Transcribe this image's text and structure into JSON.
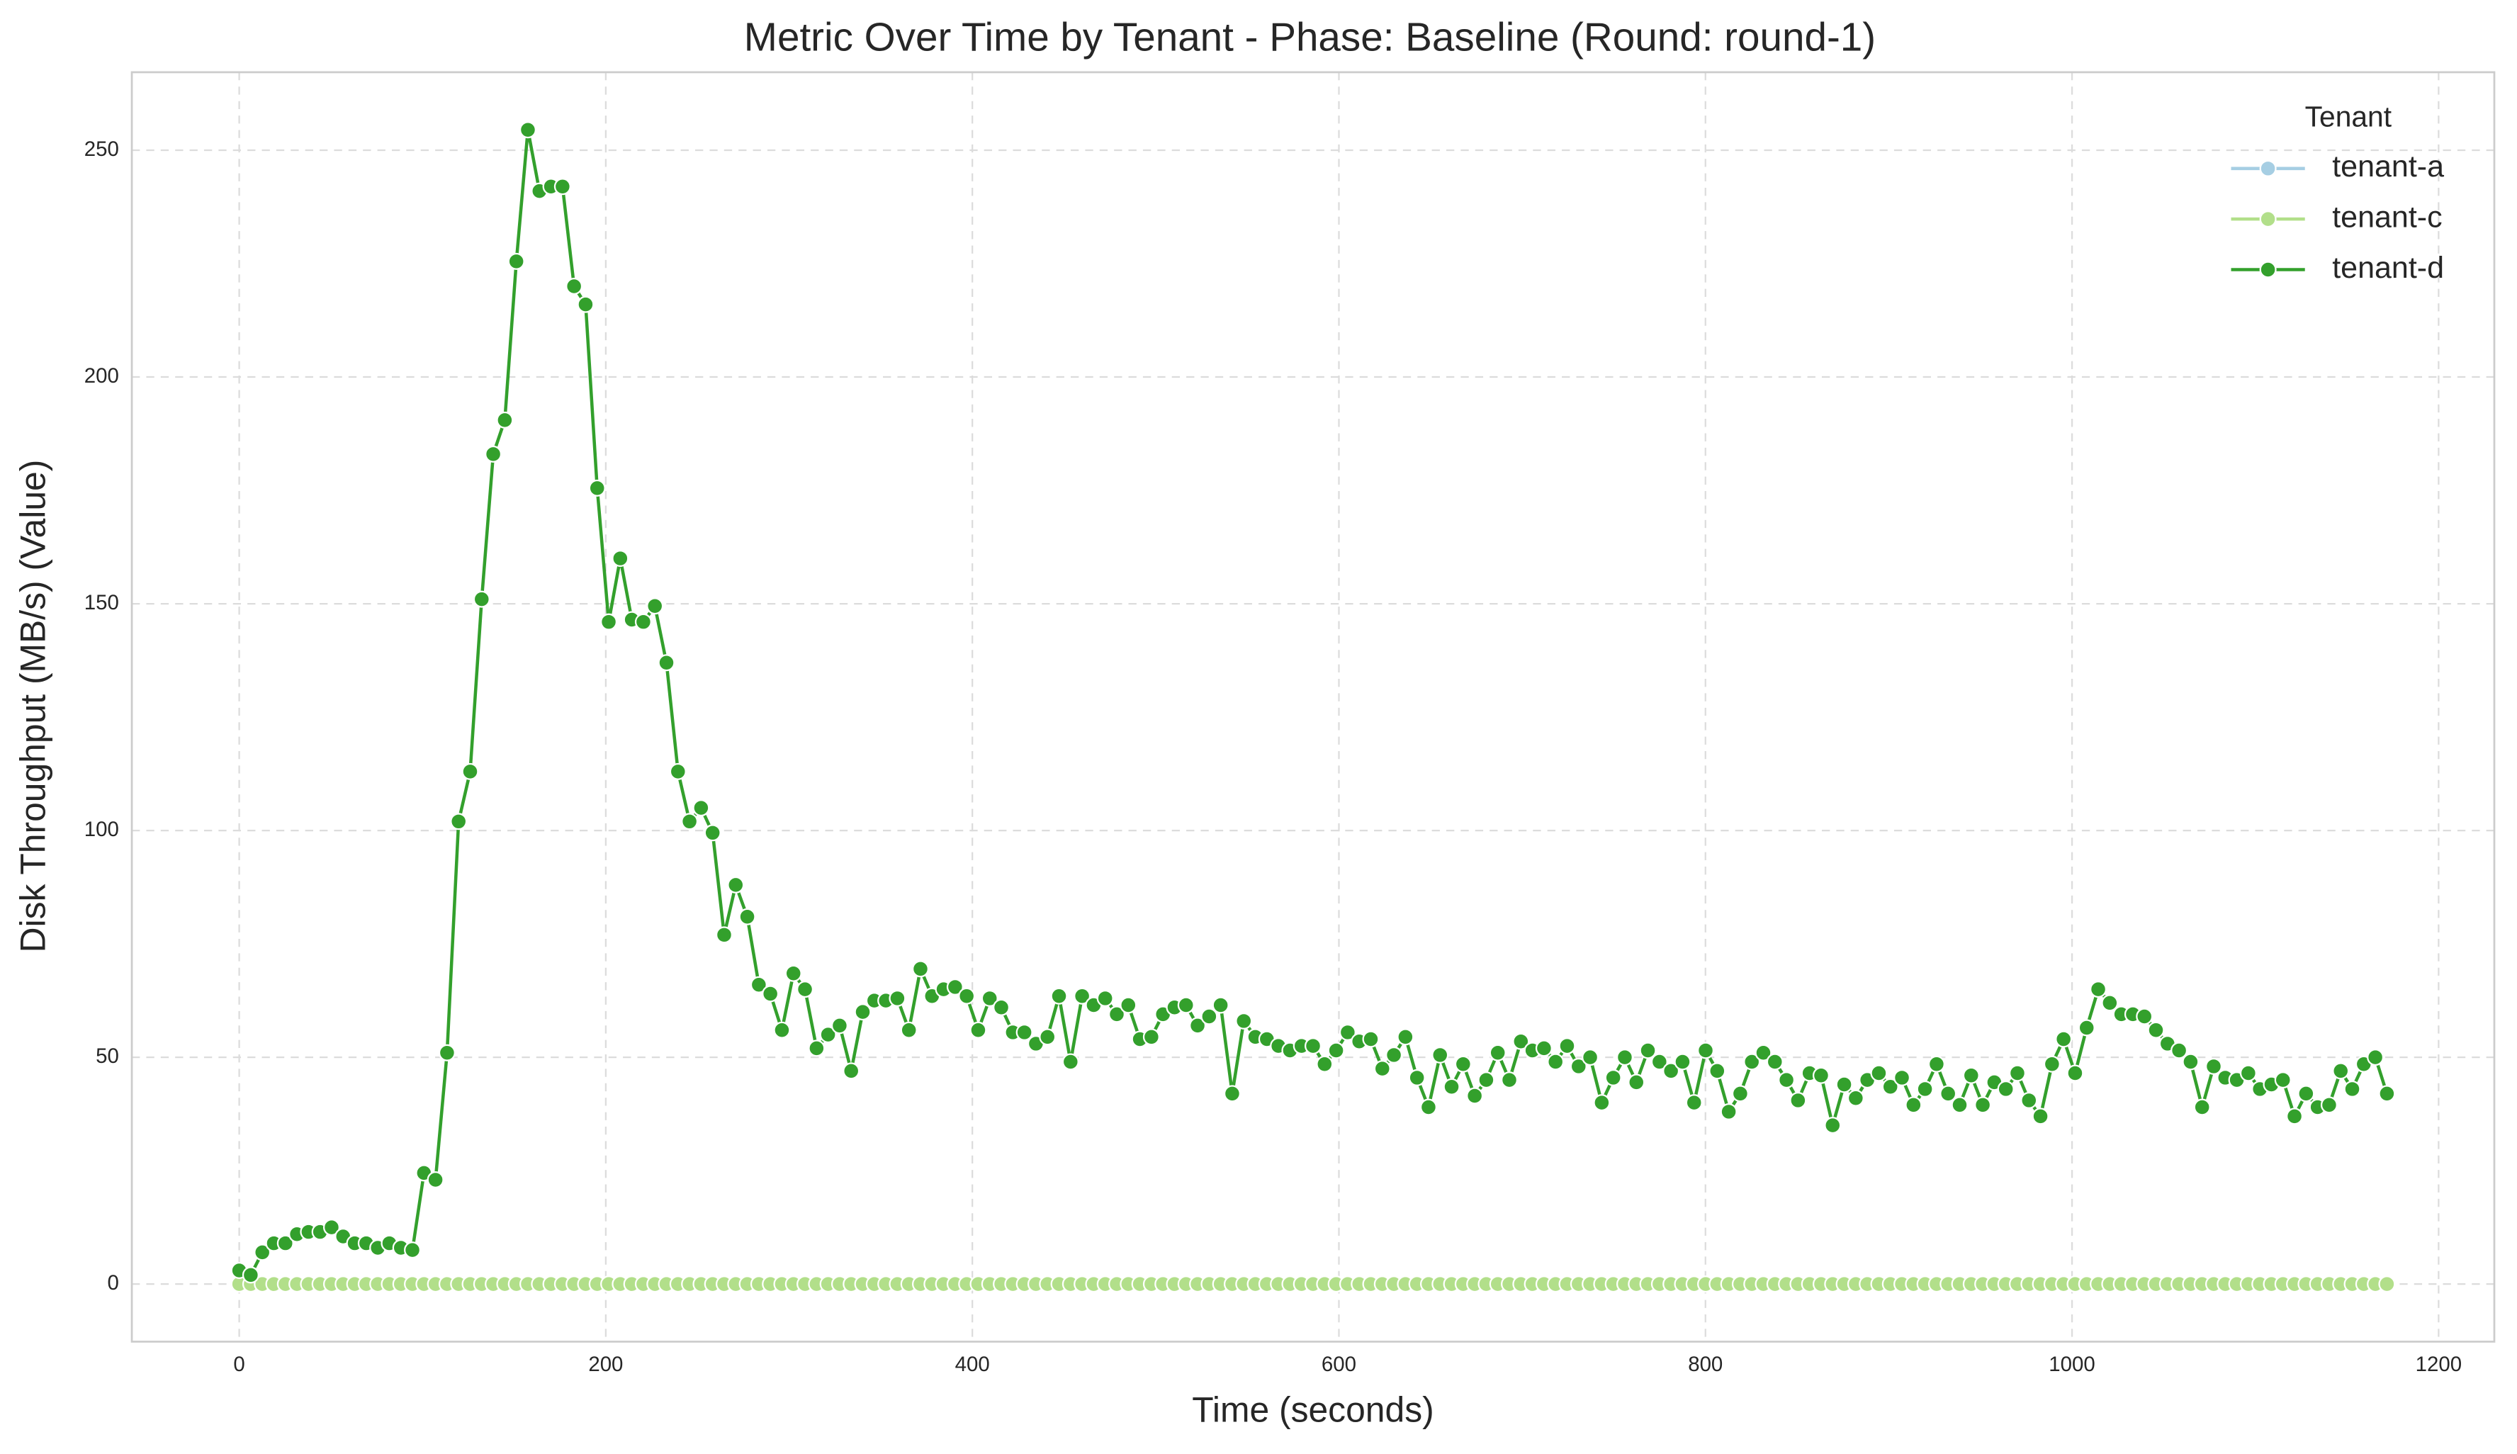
{
  "chart_data": {
    "type": "line",
    "title": "Metric Over Time by Tenant - Phase: Baseline (Round: round-1)",
    "x_label": "Time (seconds)",
    "y_label": "Disk Throughput (MB/s) (Value)",
    "legend_title": "Tenant",
    "legend_position": "upper right",
    "grid": true,
    "xlim": [
      -58.6,
      1230.4
    ],
    "ylim": [
      -12.7,
      267.2
    ],
    "xticks": [
      0,
      200,
      400,
      600,
      800,
      1000,
      1200
    ],
    "yticks": [
      0,
      50,
      100,
      150,
      200,
      250
    ],
    "x": [
      0,
      6.3,
      12.6,
      18.9,
      25.2,
      31.5,
      37.8,
      44.1,
      50.4,
      56.7,
      63,
      69.3,
      75.6,
      81.9,
      88.2,
      94.5,
      100.8,
      107.1,
      113.4,
      119.7,
      126,
      132.3,
      138.6,
      144.9,
      151.2,
      157.5,
      163.8,
      170.1,
      176.4,
      182.7,
      189,
      195.3,
      201.6,
      207.9,
      214.2,
      220.5,
      226.8,
      233.1,
      239.4,
      245.7,
      252,
      258.3,
      264.6,
      270.9,
      277.2,
      283.5,
      289.8,
      296.1,
      302.4,
      308.7,
      315,
      321.3,
      327.6,
      333.9,
      340.2,
      346.5,
      352.8,
      359.1,
      365.4,
      371.7,
      378,
      384.3,
      390.6,
      396.9,
      403.2,
      409.5,
      415.8,
      422.1,
      428.4,
      434.7,
      441,
      447.3,
      453.6,
      459.9,
      466.2,
      472.5,
      478.8,
      485.1,
      491.4,
      497.7,
      504,
      510.3,
      516.6,
      522.9,
      529.2,
      535.5,
      541.8,
      548.1,
      554.4,
      560.7,
      567,
      573.3,
      579.6,
      585.9,
      592.2,
      598.5,
      604.8,
      611.1,
      617.4,
      623.7,
      630,
      636.3,
      642.6,
      648.9,
      655.2,
      661.5,
      667.8,
      674.1,
      680.4,
      686.7,
      693,
      699.3,
      705.6,
      711.9,
      718.2,
      724.5,
      730.8,
      737.1,
      743.4,
      749.7,
      756,
      762.3,
      768.6,
      774.9,
      781.2,
      787.5,
      793.8,
      800.1,
      806.4,
      812.7,
      819,
      825.3,
      831.6,
      837.9,
      844.2,
      850.5,
      856.8,
      863.1,
      869.4,
      875.7,
      882,
      888.3,
      894.6,
      900.9,
      907.2,
      913.5,
      919.8,
      926.1,
      932.4,
      938.7,
      945,
      951.3,
      957.6,
      963.9,
      970.2,
      976.5,
      982.8,
      989.1,
      995.4,
      1001.7,
      1008,
      1014.3,
      1020.6,
      1026.9,
      1033.2,
      1039.5,
      1045.8,
      1052.1,
      1058.4,
      1064.7,
      1071,
      1077.3,
      1083.6,
      1089.9,
      1096.2,
      1102.5,
      1108.8,
      1115.1,
      1121.4,
      1127.7,
      1134,
      1140.3,
      1146.6,
      1152.9,
      1159.2,
      1165.5,
      1171.8
    ],
    "series": [
      {
        "name": "tenant-a",
        "color": "#a6cee3",
        "values": [
          0,
          0,
          0,
          0,
          0,
          0,
          0,
          0,
          0,
          0,
          0,
          0,
          0,
          0,
          0,
          0,
          0,
          0,
          0,
          0,
          0,
          0,
          0,
          0,
          0,
          0,
          0,
          0,
          0,
          0,
          0,
          0,
          0,
          0,
          0,
          0,
          0,
          0,
          0,
          0,
          0,
          0,
          0,
          0,
          0,
          0,
          0,
          0,
          0,
          0,
          0,
          0,
          0,
          0,
          0,
          0,
          0,
          0,
          0,
          0,
          0,
          0,
          0,
          0,
          0,
          0,
          0,
          0,
          0,
          0,
          0,
          0,
          0,
          0,
          0,
          0,
          0,
          0,
          0,
          0,
          0,
          0,
          0,
          0,
          0,
          0,
          0,
          0,
          0,
          0,
          0,
          0,
          0,
          0,
          0,
          0,
          0,
          0,
          0,
          0,
          0,
          0,
          0,
          0,
          0,
          0,
          0,
          0,
          0,
          0,
          0,
          0,
          0,
          0,
          0,
          0,
          0,
          0,
          0,
          0,
          0,
          0,
          0,
          0,
          0,
          0,
          0,
          0,
          0,
          0,
          0,
          0,
          0,
          0,
          0,
          0,
          0,
          0,
          0,
          0,
          0,
          0,
          0,
          0,
          0,
          0,
          0,
          0,
          0,
          0,
          0,
          0,
          0,
          0,
          0,
          0,
          0,
          0,
          0,
          0,
          0,
          0,
          0,
          0,
          0,
          0,
          0,
          0,
          0,
          0,
          0,
          0,
          0,
          0,
          0,
          0,
          0,
          0,
          0,
          0,
          0,
          0,
          0,
          0,
          0,
          0,
          0
        ]
      },
      {
        "name": "tenant-c",
        "color": "#b2df8a",
        "values": [
          0,
          0,
          0,
          0,
          0,
          0,
          0,
          0,
          0,
          0,
          0,
          0,
          0,
          0,
          0,
          0,
          0,
          0,
          0,
          0,
          0,
          0,
          0,
          0,
          0,
          0,
          0,
          0,
          0,
          0,
          0,
          0,
          0,
          0,
          0,
          0,
          0,
          0,
          0,
          0,
          0,
          0,
          0,
          0,
          0,
          0,
          0,
          0,
          0,
          0,
          0,
          0,
          0,
          0,
          0,
          0,
          0,
          0,
          0,
          0,
          0,
          0,
          0,
          0,
          0,
          0,
          0,
          0,
          0,
          0,
          0,
          0,
          0,
          0,
          0,
          0,
          0,
          0,
          0,
          0,
          0,
          0,
          0,
          0,
          0,
          0,
          0,
          0,
          0,
          0,
          0,
          0,
          0,
          0,
          0,
          0,
          0,
          0,
          0,
          0,
          0,
          0,
          0,
          0,
          0,
          0,
          0,
          0,
          0,
          0,
          0,
          0,
          0,
          0,
          0,
          0,
          0,
          0,
          0,
          0,
          0,
          0,
          0,
          0,
          0,
          0,
          0,
          0,
          0,
          0,
          0,
          0,
          0,
          0,
          0,
          0,
          0,
          0,
          0,
          0,
          0,
          0,
          0,
          0,
          0,
          0,
          0,
          0,
          0,
          0,
          0,
          0,
          0,
          0,
          0,
          0,
          0,
          0,
          0,
          0,
          0,
          0,
          0,
          0,
          0,
          0,
          0,
          0,
          0,
          0,
          0,
          0,
          0,
          0,
          0,
          0,
          0,
          0,
          0,
          0,
          0,
          0,
          0,
          0,
          0,
          0,
          0
        ]
      },
      {
        "name": "tenant-d",
        "color": "#33a02c",
        "values": [
          3,
          2,
          7,
          9,
          9,
          11,
          11.5,
          11.5,
          12.5,
          10.5,
          9,
          9,
          8,
          9,
          8,
          7.5,
          24.5,
          23,
          51,
          102,
          113,
          151,
          183,
          190.5,
          225.5,
          254.5,
          241,
          242,
          242,
          220,
          216,
          175.5,
          146,
          160,
          146.5,
          146,
          149.5,
          137,
          113,
          102,
          105,
          99.5,
          77,
          88,
          81,
          66,
          64,
          56,
          68.5,
          65,
          52,
          55,
          57,
          47,
          60,
          62.5,
          62.5,
          63,
          56,
          69.5,
          63.5,
          65,
          65.5,
          63.5,
          56,
          63,
          61,
          55.5,
          55.5,
          53,
          54.5,
          63.5,
          49,
          63.5,
          61.5,
          63,
          59.5,
          61.5,
          54,
          54.5,
          59.5,
          61,
          61.5,
          57,
          59,
          61.5,
          42,
          58,
          54.5,
          54,
          52.5,
          51.5,
          52.5,
          52.5,
          48.5,
          51.5,
          55.5,
          53.5,
          54,
          47.5,
          50.5,
          54.5,
          45.5,
          39,
          50.5,
          43.5,
          48.5,
          41.5,
          45,
          51,
          45,
          53.5,
          51.5,
          52,
          49,
          52.5,
          48,
          50,
          40,
          45.5,
          50,
          44.5,
          51.5,
          49,
          47,
          49,
          40,
          51.5,
          47,
          38,
          42,
          49,
          51,
          49,
          45,
          40.5,
          46.5,
          46,
          35,
          44,
          41,
          45,
          46.5,
          43.5,
          45.5,
          39.5,
          43,
          48.5,
          42,
          39.5,
          46,
          39.5,
          44.5,
          43,
          46.5,
          40.5,
          37,
          48.5,
          54,
          46.5,
          56.5,
          65,
          62,
          59.5,
          59.5,
          59,
          56,
          53,
          51.5,
          49,
          39,
          48,
          45.5,
          45,
          46.5,
          43,
          44,
          45,
          37,
          42,
          39,
          39.5,
          47,
          43,
          48.5,
          50,
          42
        ]
      }
    ]
  }
}
